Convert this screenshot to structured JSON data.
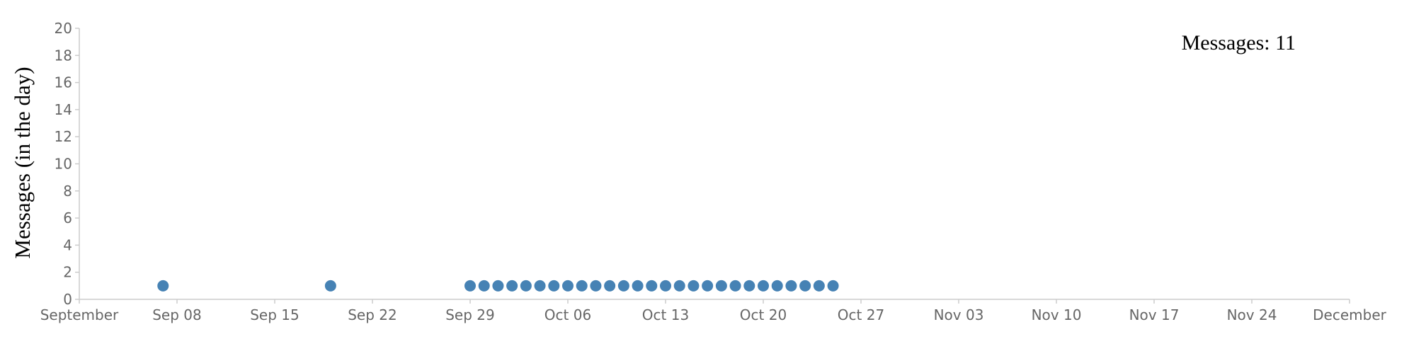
{
  "chart_data": {
    "type": "scatter",
    "title": "",
    "xlabel": "",
    "ylabel": "Messages (in the day)",
    "ylim": [
      0,
      20
    ],
    "y_ticks": [
      0,
      2,
      4,
      6,
      8,
      10,
      12,
      14,
      16,
      18,
      20
    ],
    "x_range": [
      "2013-09-01",
      "2013-12-01"
    ],
    "x_ticks": [
      {
        "date": "2013-09-01",
        "label": "September"
      },
      {
        "date": "2013-09-08",
        "label": "Sep 08"
      },
      {
        "date": "2013-09-15",
        "label": "Sep 15"
      },
      {
        "date": "2013-09-22",
        "label": "Sep 22"
      },
      {
        "date": "2013-09-29",
        "label": "Sep 29"
      },
      {
        "date": "2013-10-06",
        "label": "Oct 06"
      },
      {
        "date": "2013-10-13",
        "label": "Oct 13"
      },
      {
        "date": "2013-10-20",
        "label": "Oct 20"
      },
      {
        "date": "2013-10-27",
        "label": "Oct 27"
      },
      {
        "date": "2013-11-03",
        "label": "Nov 03"
      },
      {
        "date": "2013-11-10",
        "label": "Nov 10"
      },
      {
        "date": "2013-11-17",
        "label": "Nov 17"
      },
      {
        "date": "2013-11-24",
        "label": "Nov 24"
      },
      {
        "date": "2013-12-01",
        "label": "December"
      }
    ],
    "series": [
      {
        "name": "Messages",
        "color": "#4682b4",
        "points": [
          {
            "date": "2013-09-07",
            "value": 1
          },
          {
            "date": "2013-09-19",
            "value": 1
          },
          {
            "date": "2013-09-29",
            "value": 1
          },
          {
            "date": "2013-09-30",
            "value": 1
          },
          {
            "date": "2013-10-01",
            "value": 1
          },
          {
            "date": "2013-10-02",
            "value": 1
          },
          {
            "date": "2013-10-03",
            "value": 1
          },
          {
            "date": "2013-10-04",
            "value": 1
          },
          {
            "date": "2013-10-05",
            "value": 1
          },
          {
            "date": "2013-10-06",
            "value": 1
          },
          {
            "date": "2013-10-07",
            "value": 1
          },
          {
            "date": "2013-10-08",
            "value": 1
          },
          {
            "date": "2013-10-09",
            "value": 1
          },
          {
            "date": "2013-10-10",
            "value": 1
          },
          {
            "date": "2013-10-11",
            "value": 1
          },
          {
            "date": "2013-10-12",
            "value": 1
          },
          {
            "date": "2013-10-13",
            "value": 1
          },
          {
            "date": "2013-10-14",
            "value": 1
          },
          {
            "date": "2013-10-15",
            "value": 1
          },
          {
            "date": "2013-10-16",
            "value": 1
          },
          {
            "date": "2013-10-17",
            "value": 1
          },
          {
            "date": "2013-10-18",
            "value": 1
          },
          {
            "date": "2013-10-19",
            "value": 1
          },
          {
            "date": "2013-10-20",
            "value": 1
          },
          {
            "date": "2013-10-21",
            "value": 1
          },
          {
            "date": "2013-10-22",
            "value": 1
          },
          {
            "date": "2013-10-23",
            "value": 1
          },
          {
            "date": "2013-10-24",
            "value": 1
          },
          {
            "date": "2013-10-25",
            "value": 1
          }
        ]
      }
    ]
  },
  "counter": {
    "label": "Messages:",
    "value": "11"
  },
  "colors": {
    "axis": "#cccccc",
    "tick_text": "#666666",
    "point": "#4682b4"
  }
}
